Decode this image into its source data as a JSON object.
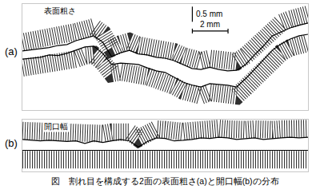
{
  "chart_data": [
    {
      "type": "line",
      "panel": "(a)",
      "annotations": [
        "表面粗さ"
      ],
      "x": [
        0,
        0.5,
        1,
        1.5,
        2,
        2.5,
        3,
        3.5,
        4,
        4.5,
        5,
        5.5,
        6,
        6.5,
        7,
        7.5,
        8,
        8.5,
        9,
        9.5,
        10,
        10.5,
        11,
        11.5,
        12,
        12.5,
        13,
        13.5,
        14,
        14.5,
        15,
        15.5,
        16
      ],
      "series": [
        {
          "color": "#000000",
          "line_style": "solid",
          "values": [
            1.45,
            1.49,
            1.53,
            1.56,
            1.63,
            1.66,
            1.79,
            1.87,
            1.95,
            1.74,
            1.26,
            1.39,
            1.47,
            1.35,
            1.32,
            1.24,
            1.21,
            1.13,
            1.0,
            0.87,
            0.84,
            0.91,
            0.84,
            0.79,
            0.81,
            1.0,
            1.32,
            1.61,
            1.95,
            2.09,
            2.21,
            2.3,
            2.37
          ]
        },
        {
          "color": "#000000",
          "line_style": "solid",
          "values": [
            1.18,
            1.21,
            1.24,
            1.32,
            1.3,
            1.37,
            1.47,
            1.58,
            1.61,
            1.37,
            1.0,
            1.05,
            1.03,
            1.0,
            0.89,
            0.79,
            0.74,
            0.58,
            0.42,
            0.32,
            0.26,
            0.37,
            0.35,
            0.32,
            0.26,
            0.53,
            0.84,
            1.16,
            1.47,
            1.68,
            1.84,
            1.95,
            2.0
          ]
        }
      ],
      "xlim": [
        0,
        16
      ],
      "ylim": [
        -0.5,
        3.0
      ],
      "scale_bar": {
        "x_length": 2,
        "x_label": "2 mm",
        "y_length": 0.5,
        "y_label": "0.5 mm"
      },
      "tick_labels": false,
      "grid": false
    },
    {
      "type": "line",
      "panel": "(b)",
      "annotations": [
        "開口幅"
      ],
      "x": [
        0,
        0.5,
        1,
        1.5,
        2,
        2.5,
        3,
        3.5,
        4,
        4.5,
        5,
        5.5,
        6,
        6.5,
        7,
        7.5,
        8,
        8.5,
        9,
        9.5,
        10,
        10.5,
        11,
        11.5,
        12,
        12.5,
        13,
        13.5,
        14,
        14.5,
        15,
        15.5,
        16
      ],
      "series": [
        {
          "color": "#000000",
          "line_style": "solid",
          "values": [
            0.35,
            0.33,
            0.3,
            0.32,
            0.3,
            0.28,
            0.3,
            0.22,
            0.3,
            0.25,
            0.3,
            0.35,
            0.3,
            0.1,
            0.28,
            0.4,
            0.38,
            0.3,
            0.32,
            0.35,
            0.4,
            0.38,
            0.42,
            0.4,
            0.35,
            0.38,
            0.4,
            0.35,
            0.38,
            0.4,
            0.42,
            0.4,
            0.42
          ]
        }
      ],
      "xlim": [
        0,
        16
      ],
      "ylim": [
        -0.7,
        1.0
      ],
      "tick_labels": false,
      "grid": false
    }
  ],
  "caption": "図　割れ目を構成する2面の表面粗さ(a)と開口幅(b)の分布"
}
